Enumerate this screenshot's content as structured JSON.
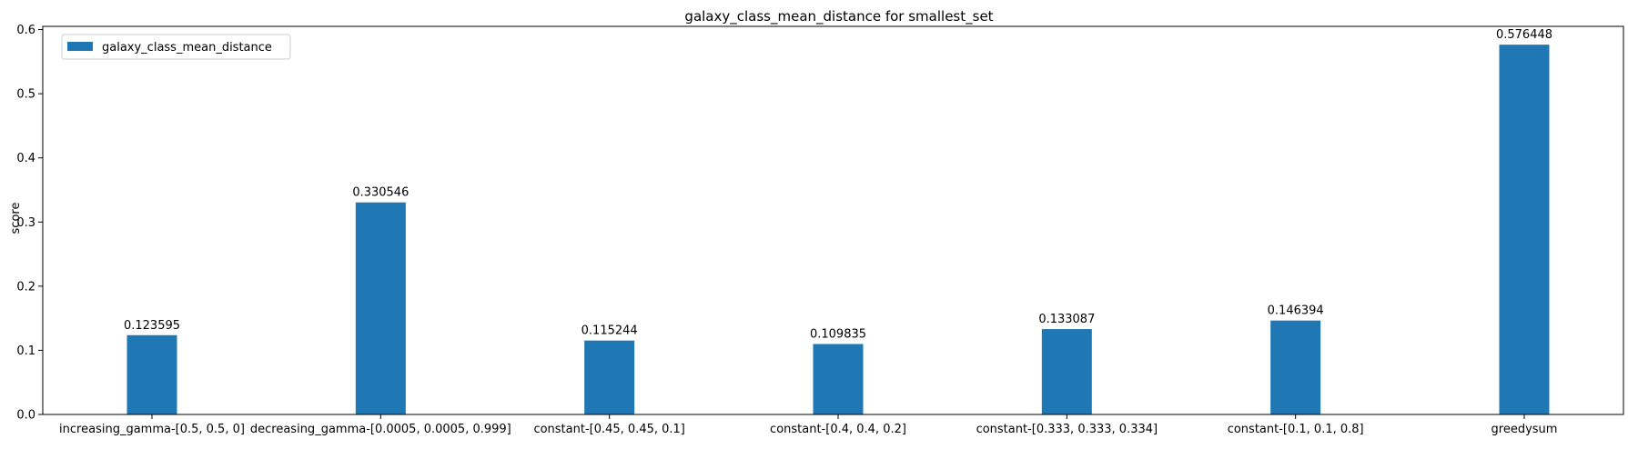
{
  "chart_data": {
    "type": "bar",
    "title": "galaxy_class_mean_distance for smallest_set",
    "xlabel": "",
    "ylabel": "score",
    "categories": [
      "increasing_gamma-[0.5, 0.5, 0]",
      "decreasing_gamma-[0.0005, 0.0005, 0.999]",
      "constant-[0.45, 0.45, 0.1]",
      "constant-[0.4, 0.4, 0.2]",
      "constant-[0.333, 0.333, 0.334]",
      "constant-[0.1, 0.1, 0.8]",
      "greedysum"
    ],
    "series": [
      {
        "name": "galaxy_class_mean_distance",
        "color": "#1f77b4",
        "values": [
          0.123595,
          0.330546,
          0.115244,
          0.109835,
          0.133087,
          0.146394,
          0.576448
        ],
        "labels": [
          "0.123595",
          "0.330546",
          "0.115244",
          "0.109835",
          "0.133087",
          "0.146394",
          "0.576448"
        ]
      }
    ],
    "ylim": [
      0,
      0.605
    ],
    "yticks": [
      "0.0",
      "0.1",
      "0.2",
      "0.3",
      "0.4",
      "0.5",
      "0.6"
    ],
    "grid": false,
    "legend_position": "upper-left"
  }
}
